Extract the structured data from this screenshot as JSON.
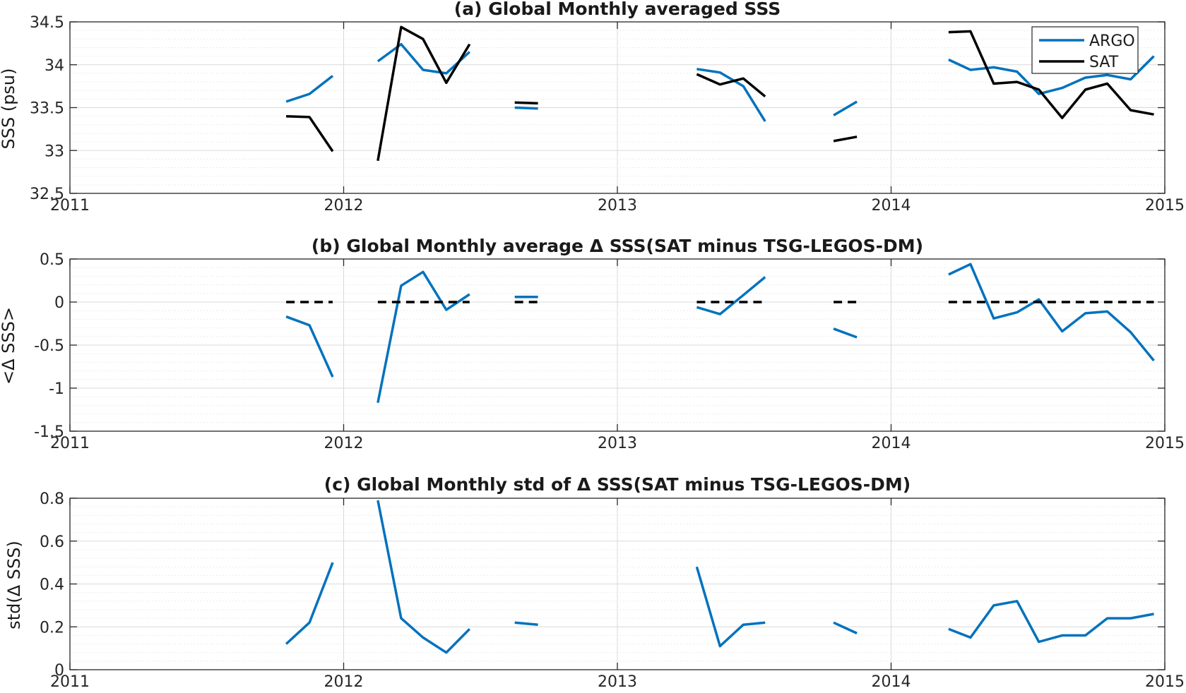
{
  "colors": {
    "argo": "#0072BD",
    "sat": "#000000",
    "axis": "#262626",
    "grid_major": "#d9d9d9",
    "grid_minor": "#e6e6e6"
  },
  "chart_data": [
    {
      "type": "line",
      "title": "(a) Global Monthly averaged SSS",
      "ylabel": "SSS (psu)",
      "xlim": [
        2011,
        2015
      ],
      "ylim": [
        32.5,
        34.5
      ],
      "xticks": [
        "2011",
        "2012",
        "2013",
        "2014",
        "2015"
      ],
      "yticks": [
        "32.5",
        "33",
        "33.5",
        "34",
        "34.5"
      ],
      "ytick_values": [
        32.5,
        33,
        33.5,
        34,
        34.5
      ],
      "grid": true,
      "minor_grid": true,
      "legend": {
        "position": "top-right",
        "entries": [
          "ARGO",
          "SAT"
        ]
      },
      "series": [
        {
          "name": "ARGO",
          "color": "#0072BD",
          "style": "solid",
          "segments": [
            [
              [
                2011.79,
                33.57
              ],
              [
                2011.875,
                33.66
              ],
              [
                2011.96,
                33.87
              ]
            ],
            [
              [
                2012.125,
                34.04
              ],
              [
                2012.21,
                34.24
              ],
              [
                2012.29,
                33.94
              ],
              [
                2012.375,
                33.9
              ],
              [
                2012.46,
                34.15
              ]
            ],
            [
              [
                2012.625,
                33.5
              ],
              [
                2012.71,
                33.49
              ]
            ],
            [
              [
                2013.29,
                33.95
              ],
              [
                2013.375,
                33.91
              ],
              [
                2013.46,
                33.75
              ],
              [
                2013.54,
                33.34
              ]
            ],
            [
              [
                2013.79,
                33.41
              ],
              [
                2013.875,
                33.57
              ]
            ],
            [
              [
                2014.21,
                34.06
              ],
              [
                2014.29,
                33.94
              ],
              [
                2014.375,
                33.97
              ],
              [
                2014.46,
                33.92
              ],
              [
                2014.54,
                33.66
              ],
              [
                2014.625,
                33.73
              ],
              [
                2014.71,
                33.85
              ],
              [
                2014.79,
                33.88
              ],
              [
                2014.875,
                33.83
              ],
              [
                2014.96,
                34.1
              ]
            ]
          ]
        },
        {
          "name": "SAT",
          "color": "#000000",
          "style": "solid",
          "segments": [
            [
              [
                2011.79,
                33.4
              ],
              [
                2011.875,
                33.39
              ],
              [
                2011.96,
                32.99
              ]
            ],
            [
              [
                2012.125,
                32.88
              ],
              [
                2012.21,
                34.44
              ],
              [
                2012.29,
                34.3
              ],
              [
                2012.375,
                33.79
              ],
              [
                2012.46,
                34.24
              ]
            ],
            [
              [
                2012.625,
                33.56
              ],
              [
                2012.71,
                33.55
              ]
            ],
            [
              [
                2013.29,
                33.89
              ],
              [
                2013.375,
                33.77
              ],
              [
                2013.46,
                33.84
              ],
              [
                2013.54,
                33.63
              ]
            ],
            [
              [
                2013.79,
                33.11
              ],
              [
                2013.875,
                33.16
              ]
            ],
            [
              [
                2014.21,
                34.38
              ],
              [
                2014.29,
                34.39
              ],
              [
                2014.375,
                33.78
              ],
              [
                2014.46,
                33.8
              ],
              [
                2014.54,
                33.71
              ],
              [
                2014.625,
                33.38
              ],
              [
                2014.71,
                33.71
              ],
              [
                2014.79,
                33.78
              ],
              [
                2014.875,
                33.47
              ],
              [
                2014.96,
                33.42
              ]
            ]
          ]
        }
      ]
    },
    {
      "type": "line",
      "title": "(b) Global Monthly average Δ SSS(SAT minus TSG-LEGOS-DM)",
      "ylabel": "<Δ SSS>",
      "xlim": [
        2011,
        2015
      ],
      "ylim": [
        -1.5,
        0.5
      ],
      "xticks": [
        "2011",
        "2012",
        "2013",
        "2014",
        "2015"
      ],
      "yticks": [
        "-1.5",
        "-1",
        "-0.5",
        "0",
        "0.5"
      ],
      "ytick_values": [
        -1.5,
        -1,
        -0.5,
        0,
        0.5
      ],
      "grid": true,
      "minor_grid": true,
      "series": [
        {
          "color": "#0072BD",
          "style": "solid",
          "segments": [
            [
              [
                2011.79,
                -0.17
              ],
              [
                2011.875,
                -0.27
              ],
              [
                2011.96,
                -0.87
              ]
            ],
            [
              [
                2012.125,
                -1.17
              ],
              [
                2012.21,
                0.19
              ],
              [
                2012.29,
                0.35
              ],
              [
                2012.375,
                -0.09
              ],
              [
                2012.46,
                0.09
              ]
            ],
            [
              [
                2012.625,
                0.06
              ],
              [
                2012.71,
                0.06
              ]
            ],
            [
              [
                2013.29,
                -0.06
              ],
              [
                2013.375,
                -0.14
              ],
              [
                2013.46,
                0.08
              ],
              [
                2013.54,
                0.29
              ]
            ],
            [
              [
                2013.79,
                -0.31
              ],
              [
                2013.875,
                -0.41
              ]
            ],
            [
              [
                2014.21,
                0.32
              ],
              [
                2014.29,
                0.44
              ],
              [
                2014.375,
                -0.19
              ],
              [
                2014.46,
                -0.12
              ],
              [
                2014.54,
                0.03
              ],
              [
                2014.625,
                -0.34
              ],
              [
                2014.71,
                -0.13
              ],
              [
                2014.79,
                -0.11
              ],
              [
                2014.875,
                -0.35
              ],
              [
                2014.96,
                -0.68
              ]
            ]
          ]
        },
        {
          "color": "#000000",
          "style": "dashed",
          "segments": [
            [
              [
                2011.79,
                0
              ],
              [
                2011.96,
                0
              ]
            ],
            [
              [
                2012.125,
                0
              ],
              [
                2012.46,
                0
              ]
            ],
            [
              [
                2012.625,
                0
              ],
              [
                2012.71,
                0
              ]
            ],
            [
              [
                2013.29,
                0
              ],
              [
                2013.54,
                0
              ]
            ],
            [
              [
                2013.79,
                0
              ],
              [
                2013.875,
                0
              ]
            ],
            [
              [
                2014.21,
                0
              ],
              [
                2014.96,
                0
              ]
            ]
          ]
        }
      ]
    },
    {
      "type": "line",
      "title": "(c) Global Monthly std of Δ SSS(SAT minus TSG-LEGOS-DM)",
      "ylabel": "std(Δ SSS)",
      "xlim": [
        2011,
        2015
      ],
      "ylim": [
        0,
        0.8
      ],
      "xticks": [
        "2011",
        "2012",
        "2013",
        "2014",
        "2015"
      ],
      "yticks": [
        "0",
        "0.2",
        "0.4",
        "0.6",
        "0.8"
      ],
      "ytick_values": [
        0,
        0.2,
        0.4,
        0.6,
        0.8
      ],
      "grid": true,
      "minor_grid": true,
      "series": [
        {
          "color": "#0072BD",
          "style": "solid",
          "segments": [
            [
              [
                2011.79,
                0.12
              ],
              [
                2011.875,
                0.22
              ],
              [
                2011.96,
                0.5
              ]
            ],
            [
              [
                2012.125,
                0.79
              ],
              [
                2012.21,
                0.24
              ],
              [
                2012.29,
                0.15
              ],
              [
                2012.375,
                0.08
              ],
              [
                2012.46,
                0.19
              ]
            ],
            [
              [
                2012.625,
                0.22
              ],
              [
                2012.71,
                0.21
              ]
            ],
            [
              [
                2013.29,
                0.48
              ],
              [
                2013.375,
                0.11
              ],
              [
                2013.46,
                0.21
              ],
              [
                2013.54,
                0.22
              ]
            ],
            [
              [
                2013.79,
                0.22
              ],
              [
                2013.875,
                0.17
              ]
            ],
            [
              [
                2014.21,
                0.19
              ],
              [
                2014.29,
                0.15
              ],
              [
                2014.375,
                0.3
              ],
              [
                2014.46,
                0.32
              ],
              [
                2014.54,
                0.13
              ],
              [
                2014.625,
                0.16
              ],
              [
                2014.71,
                0.16
              ],
              [
                2014.79,
                0.24
              ],
              [
                2014.875,
                0.24
              ],
              [
                2014.96,
                0.26
              ]
            ]
          ]
        }
      ]
    }
  ]
}
